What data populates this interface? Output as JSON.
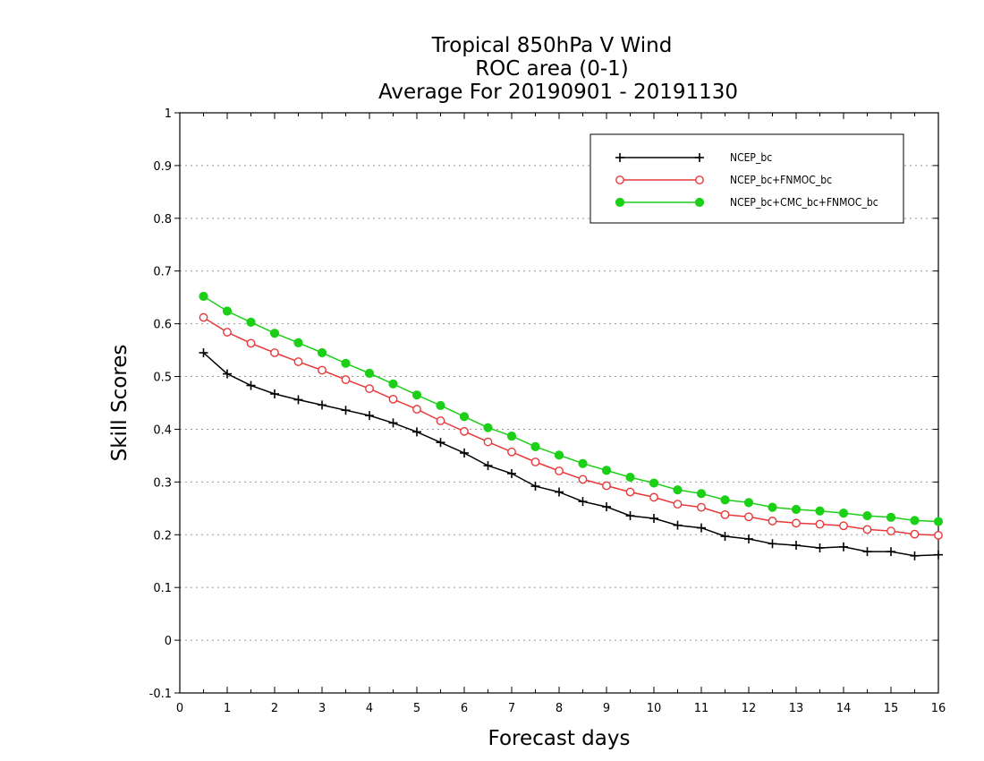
{
  "chart_data": {
    "type": "line",
    "title_lines": [
      "Tropical 850hPa V Wind",
      "ROC area (0-1)",
      "Average For 20190901 - 20191130"
    ],
    "xlabel": "Forecast days",
    "ylabel": "Skill Scores",
    "xlim": [
      0,
      16
    ],
    "ylim": [
      -0.1,
      1
    ],
    "x_ticks": [
      "0",
      "1",
      "2",
      "3",
      "4",
      "5",
      "6",
      "7",
      "8",
      "9",
      "10",
      "11",
      "12",
      "13",
      "14",
      "15",
      "16"
    ],
    "y_ticks": [
      "-0.1",
      "0",
      "0.1",
      "0.2",
      "0.3",
      "0.4",
      "0.5",
      "0.6",
      "0.7",
      "0.8",
      "0.9",
      "1"
    ],
    "grid": "horizontal dotted",
    "legend_position": "top-right",
    "x": [
      0.5,
      1,
      1.5,
      2,
      2.5,
      3,
      3.5,
      4,
      4.5,
      5,
      5.5,
      6,
      6.5,
      7,
      7.5,
      8,
      8.5,
      9,
      9.5,
      10,
      10.5,
      11,
      11.5,
      12,
      12.5,
      13,
      13.5,
      14,
      14.5,
      15,
      15.5,
      16
    ],
    "series": [
      {
        "name": "NCEP_bc",
        "color": "#000000",
        "marker": "plus",
        "values": [
          0.545,
          0.505,
          0.483,
          0.467,
          0.456,
          0.446,
          0.436,
          0.426,
          0.412,
          0.395,
          0.375,
          0.355,
          0.331,
          0.316,
          0.292,
          0.281,
          0.263,
          0.253,
          0.236,
          0.231,
          0.218,
          0.213,
          0.197,
          0.192,
          0.183,
          0.18,
          0.175,
          0.177,
          0.168,
          0.168,
          0.16,
          0.162
        ]
      },
      {
        "name": "NCEP_bc+FNMOC_bc",
        "color": "#e8383a",
        "marker": "open-circle",
        "values": [
          0.612,
          0.584,
          0.563,
          0.545,
          0.528,
          0.512,
          0.494,
          0.477,
          0.457,
          0.438,
          0.416,
          0.396,
          0.376,
          0.357,
          0.338,
          0.321,
          0.305,
          0.293,
          0.281,
          0.271,
          0.258,
          0.252,
          0.238,
          0.234,
          0.226,
          0.222,
          0.22,
          0.217,
          0.21,
          0.207,
          0.201,
          0.199
        ]
      },
      {
        "name": "NCEP_bc+CMC_bc+FNMOC_bc",
        "color": "#1cd018",
        "marker": "filled-circle",
        "values": [
          0.652,
          0.624,
          0.603,
          0.582,
          0.564,
          0.545,
          0.525,
          0.506,
          0.486,
          0.465,
          0.445,
          0.424,
          0.403,
          0.387,
          0.367,
          0.351,
          0.335,
          0.322,
          0.309,
          0.298,
          0.285,
          0.278,
          0.266,
          0.261,
          0.252,
          0.248,
          0.245,
          0.241,
          0.236,
          0.233,
          0.227,
          0.225
        ]
      }
    ]
  }
}
